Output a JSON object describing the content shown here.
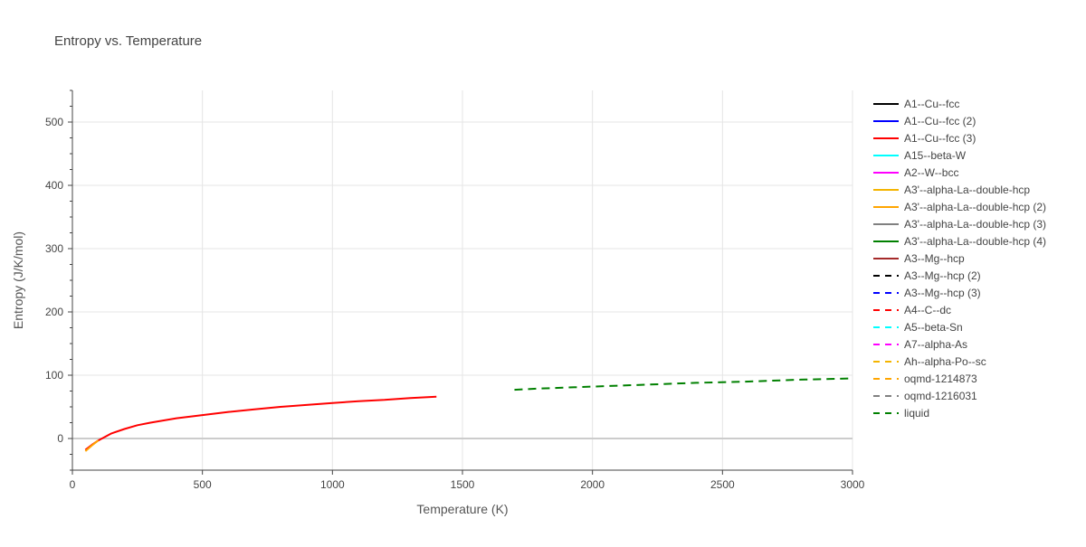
{
  "chart_data": {
    "type": "line",
    "title": "Entropy vs. Temperature",
    "xlabel": "Temperature (K)",
    "ylabel": "Entropy (J/K/mol)",
    "xlim": [
      0,
      3000
    ],
    "ylim": [
      -50,
      550
    ],
    "xticks": [
      0,
      500,
      1000,
      1500,
      2000,
      2500,
      3000
    ],
    "yticks": [
      0,
      100,
      200,
      300,
      400,
      500
    ],
    "grid": true,
    "legend_position": "right",
    "series": [
      {
        "name": "A1--Cu--fcc",
        "color": "#000000",
        "dash": "solid",
        "x": [],
        "y": []
      },
      {
        "name": "A1--Cu--fcc (2)",
        "color": "#0000ff",
        "dash": "solid",
        "x": [],
        "y": []
      },
      {
        "name": "A1--Cu--fcc (3)",
        "color": "#ff0000",
        "dash": "solid",
        "x": [
          50,
          75,
          100,
          150,
          200,
          250,
          300,
          400,
          500,
          600,
          700,
          800,
          900,
          1000,
          1100,
          1200,
          1300,
          1400
        ],
        "y": [
          -18,
          -10,
          -3,
          8,
          15,
          21,
          25,
          32,
          37,
          42,
          46,
          50,
          53,
          56,
          59,
          61,
          64,
          66
        ]
      },
      {
        "name": "A15--beta-W",
        "color": "#00ffff",
        "dash": "solid",
        "x": [],
        "y": []
      },
      {
        "name": "A2--W--bcc",
        "color": "#ff00ff",
        "dash": "solid",
        "x": [],
        "y": []
      },
      {
        "name": "A3'--alpha-La--double-hcp",
        "color": "#f4b400",
        "dash": "solid",
        "x": [],
        "y": []
      },
      {
        "name": "A3'--alpha-La--double-hcp (2)",
        "color": "#ffa500",
        "dash": "solid",
        "x": [
          50,
          75,
          100
        ],
        "y": [
          -20,
          -11,
          -3
        ]
      },
      {
        "name": "A3'--alpha-La--double-hcp (3)",
        "color": "#808080",
        "dash": "solid",
        "x": [],
        "y": []
      },
      {
        "name": "A3'--alpha-La--double-hcp (4)",
        "color": "#008000",
        "dash": "solid",
        "x": [],
        "y": []
      },
      {
        "name": "A3--Mg--hcp",
        "color": "#a52a2a",
        "dash": "solid",
        "x": [],
        "y": []
      },
      {
        "name": "A3--Mg--hcp (2)",
        "color": "#000000",
        "dash": "dash",
        "x": [],
        "y": []
      },
      {
        "name": "A3--Mg--hcp (3)",
        "color": "#0000ff",
        "dash": "dash",
        "x": [],
        "y": []
      },
      {
        "name": "A4--C--dc",
        "color": "#ff0000",
        "dash": "dash",
        "x": [],
        "y": []
      },
      {
        "name": "A5--beta-Sn",
        "color": "#00ffff",
        "dash": "dash",
        "x": [],
        "y": []
      },
      {
        "name": "A7--alpha-As",
        "color": "#ff00ff",
        "dash": "dash",
        "x": [],
        "y": []
      },
      {
        "name": "Ah--alpha-Po--sc",
        "color": "#f4b400",
        "dash": "dash",
        "x": [],
        "y": []
      },
      {
        "name": "oqmd-1214873",
        "color": "#ffa500",
        "dash": "dash",
        "x": [],
        "y": []
      },
      {
        "name": "oqmd-1216031",
        "color": "#808080",
        "dash": "dash",
        "x": [],
        "y": []
      },
      {
        "name": "liquid",
        "color": "#008000",
        "dash": "dash",
        "x": [
          1700,
          1800,
          2000,
          2200,
          2400,
          2600,
          2800,
          3000
        ],
        "y": [
          77,
          79,
          82,
          85,
          88,
          90,
          93,
          95
        ]
      }
    ]
  }
}
